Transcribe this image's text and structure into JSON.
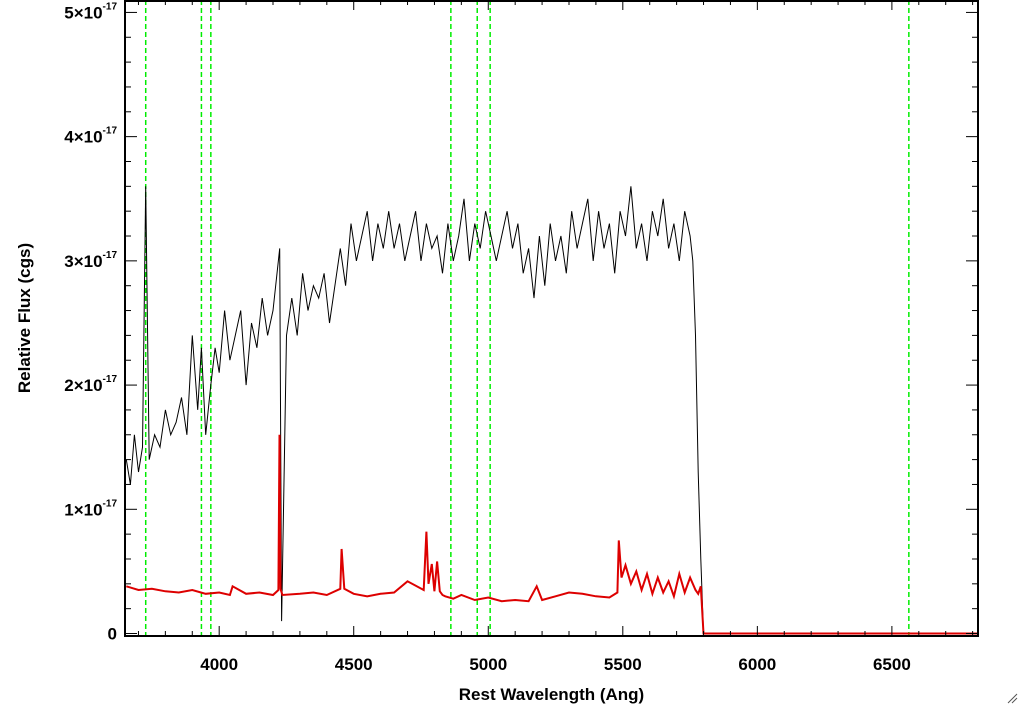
{
  "chart_data": {
    "type": "line",
    "xlabel": "Rest Wavelength (Ang)",
    "ylabel": "Relative Flux (cgs)",
    "xlim": [
      3650,
      6820
    ],
    "ylim": [
      -2e-19,
      5.1e-17
    ],
    "x_ticks": [
      {
        "value": 4000,
        "label": "4000"
      },
      {
        "value": 4500,
        "label": "4500"
      },
      {
        "value": 5000,
        "label": "5000"
      },
      {
        "value": 5500,
        "label": "5500"
      },
      {
        "value": 6000,
        "label": "6000"
      },
      {
        "value": 6500,
        "label": "6500"
      }
    ],
    "y_ticks": [
      {
        "value": 0,
        "mant": "0",
        "exp": ""
      },
      {
        "value": 1e-17,
        "mant": "1×10",
        "exp": "-17"
      },
      {
        "value": 2e-17,
        "mant": "2×10",
        "exp": "-17"
      },
      {
        "value": 3e-17,
        "mant": "3×10",
        "exp": "-17"
      },
      {
        "value": 4e-17,
        "mant": "4×10",
        "exp": "-17"
      },
      {
        "value": 5e-17,
        "mant": "5×10",
        "exp": "-17"
      }
    ],
    "reference_lines": [
      3727,
      3934,
      3969,
      4861,
      4959,
      5007,
      6563
    ],
    "series": [
      {
        "color": "#000000",
        "x": [
          3655,
          3670,
          3685,
          3700,
          3715,
          3727,
          3740,
          3760,
          3780,
          3800,
          3820,
          3840,
          3860,
          3880,
          3900,
          3920,
          3934,
          3950,
          3969,
          3985,
          4000,
          4020,
          4040,
          4060,
          4080,
          4100,
          4120,
          4140,
          4160,
          4180,
          4200,
          4225,
          4232,
          4250,
          4270,
          4290,
          4310,
          4330,
          4350,
          4370,
          4390,
          4410,
          4430,
          4450,
          4470,
          4490,
          4510,
          4530,
          4550,
          4570,
          4590,
          4610,
          4630,
          4650,
          4670,
          4690,
          4710,
          4730,
          4750,
          4770,
          4790,
          4810,
          4830,
          4850,
          4870,
          4890,
          4910,
          4930,
          4950,
          4970,
          4990,
          5010,
          5030,
          5050,
          5070,
          5090,
          5110,
          5130,
          5150,
          5170,
          5190,
          5210,
          5230,
          5250,
          5270,
          5290,
          5310,
          5330,
          5350,
          5370,
          5390,
          5410,
          5430,
          5450,
          5470,
          5490,
          5510,
          5530,
          5550,
          5570,
          5590,
          5610,
          5630,
          5650,
          5670,
          5690,
          5710,
          5730,
          5750,
          5760,
          5770,
          5780,
          5790,
          5800,
          5850,
          5950,
          6050,
          6200,
          6400,
          6600,
          6820
        ],
        "y": [
          1.4e-17,
          1.2e-17,
          1.6e-17,
          1.3e-17,
          1.5e-17,
          3.6e-17,
          1.4e-17,
          1.6e-17,
          1.5e-17,
          1.8e-17,
          1.6e-17,
          1.7e-17,
          1.9e-17,
          1.6e-17,
          2.4e-17,
          1.8e-17,
          2.3e-17,
          1.6e-17,
          2e-17,
          2.3e-17,
          2.1e-17,
          2.6e-17,
          2.2e-17,
          2.4e-17,
          2.6e-17,
          2e-17,
          2.5e-17,
          2.3e-17,
          2.7e-17,
          2.4e-17,
          2.6e-17,
          3.1e-17,
          1e-18,
          2.4e-17,
          2.7e-17,
          2.4e-17,
          2.9e-17,
          2.6e-17,
          2.8e-17,
          2.7e-17,
          2.9e-17,
          2.5e-17,
          2.8e-17,
          3.1e-17,
          2.8e-17,
          3.3e-17,
          3e-17,
          3.2e-17,
          3.4e-17,
          3e-17,
          3.3e-17,
          3.1e-17,
          3.4e-17,
          3.1e-17,
          3.3e-17,
          3e-17,
          3.2e-17,
          3.4e-17,
          3e-17,
          3.3e-17,
          3.1e-17,
          3.2e-17,
          2.9e-17,
          3.3e-17,
          3e-17,
          3.2e-17,
          3.5e-17,
          3e-17,
          3.3e-17,
          3.1e-17,
          3.4e-17,
          3.2e-17,
          3e-17,
          3.2e-17,
          3.4e-17,
          3.1e-17,
          3.3e-17,
          2.9e-17,
          3.1e-17,
          2.7e-17,
          3.2e-17,
          2.8e-17,
          3.3e-17,
          3e-17,
          3.2e-17,
          2.9e-17,
          3.4e-17,
          3.1e-17,
          3.3e-17,
          3.5e-17,
          3e-17,
          3.4e-17,
          3.1e-17,
          3.3e-17,
          2.9e-17,
          3.4e-17,
          3.2e-17,
          3.6e-17,
          3.1e-17,
          3.3e-17,
          3e-17,
          3.4e-17,
          3.2e-17,
          3.5e-17,
          3.1e-17,
          3.3e-17,
          3e-17,
          3.4e-17,
          3.2e-17,
          3e-17,
          2.4e-17,
          1.3e-17,
          6e-18,
          0,
          0,
          0,
          0,
          0,
          0,
          0,
          0
        ]
      },
      {
        "color": "#dd0000",
        "x": [
          3655,
          3700,
          3750,
          3800,
          3850,
          3900,
          3950,
          4000,
          4040,
          4050,
          4100,
          4150,
          4200,
          4220,
          4224,
          4228,
          4235,
          4300,
          4350,
          4400,
          4450,
          4455,
          4465,
          4500,
          4550,
          4600,
          4650,
          4700,
          4760,
          4770,
          4778,
          4790,
          4800,
          4810,
          4820,
          4830,
          4840,
          4870,
          4900,
          4950,
          5000,
          5050,
          5100,
          5150,
          5180,
          5200,
          5250,
          5300,
          5350,
          5400,
          5450,
          5480,
          5485,
          5495,
          5510,
          5530,
          5550,
          5570,
          5590,
          5610,
          5630,
          5650,
          5670,
          5690,
          5710,
          5730,
          5750,
          5770,
          5780,
          5790,
          5800,
          5850,
          5950,
          6050,
          6200,
          6400,
          6600,
          6820
        ],
        "y": [
          3.8e-18,
          3.5e-18,
          3.6e-18,
          3.4e-18,
          3.3e-18,
          3.5e-18,
          3.2e-18,
          3.3e-18,
          3.1e-18,
          3.8e-18,
          3.2e-18,
          3.3e-18,
          3.1e-18,
          3.5e-18,
          1.6e-17,
          3.6e-18,
          3.1e-18,
          3.2e-18,
          3.3e-18,
          3.1e-18,
          3.6e-18,
          6.8e-18,
          3.6e-18,
          3.2e-18,
          3e-18,
          3.2e-18,
          3.3e-18,
          4.2e-18,
          3.5e-18,
          8.2e-18,
          4e-18,
          5.6e-18,
          3.4e-18,
          5.8e-18,
          3.4e-18,
          3.1e-18,
          3e-18,
          2.8e-18,
          3.1e-18,
          2.7e-18,
          2.9e-18,
          2.6e-18,
          2.7e-18,
          2.6e-18,
          3.8e-18,
          2.7e-18,
          3e-18,
          3.3e-18,
          3.2e-18,
          3e-18,
          2.9e-18,
          3.3e-18,
          7.5e-18,
          4.5e-18,
          5.5e-18,
          4e-18,
          5e-18,
          3.5e-18,
          4.8e-18,
          3.2e-18,
          4.5e-18,
          3.3e-18,
          4.2e-18,
          3e-18,
          4.8e-18,
          3.3e-18,
          4.5e-18,
          3.5e-18,
          3.2e-18,
          3.8e-18,
          0,
          0,
          0,
          0,
          0,
          0,
          0,
          0
        ]
      }
    ],
    "colors": {
      "frame": "#000000",
      "reference_line": "#00ee00"
    }
  }
}
